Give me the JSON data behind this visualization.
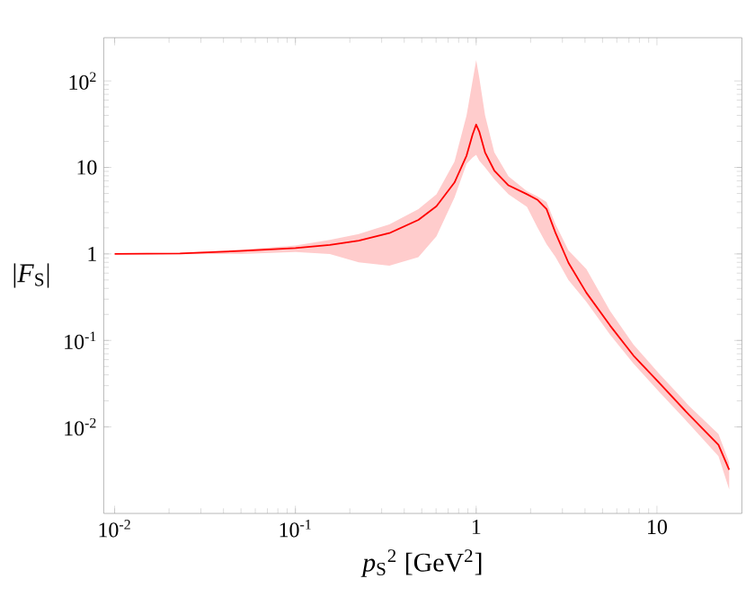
{
  "chart_data": {
    "type": "line",
    "xlabel": "*p*$_{S}$$^{2}$  [GeV$^{2}$]",
    "ylabel": "|*F*$_{S}$|",
    "log": "xy",
    "grid": false,
    "marker": "none",
    "line_style": "solid",
    "xlim": [
      0.0087,
      29.5
    ],
    "ylim": [
      0.001,
      316
    ],
    "xticks": [
      {
        "value": 0.01,
        "label": "10$^{-2}$"
      },
      {
        "value": 0.1,
        "label": "10$^{-1}$"
      },
      1,
      10
    ],
    "yticks": [
      {
        "value": 0.01,
        "label": "10$^{-2}$"
      },
      {
        "value": 0.1,
        "label": "10$^{-1}$"
      },
      1,
      10,
      {
        "value": 100,
        "label": "10$^{2}$"
      }
    ],
    "series": [
      {
        "color": "#ff0000",
        "x": [
          0.01,
          0.023,
          0.049,
          0.1,
          0.155,
          0.224,
          0.331,
          0.479,
          0.603,
          0.759,
          0.885,
          0.955,
          1.0,
          1.04,
          1.12,
          1.26,
          1.51,
          1.91,
          2.19,
          2.45,
          2.75,
          3.24,
          4.07,
          5.5,
          7.41,
          10.2,
          15.1,
          21.9,
          25.1
        ],
        "values": [
          1,
          1.01,
          1.08,
          1.17,
          1.27,
          1.42,
          1.74,
          2.47,
          3.56,
          6.7,
          13.7,
          23.9,
          31.3,
          26,
          14.9,
          9.2,
          6.2,
          4.9,
          4.2,
          3.3,
          1.74,
          0.79,
          0.356,
          0.149,
          0.067,
          0.033,
          0.0137,
          0.0062,
          0.0032
        ],
        "lower": [
          1,
          0.99,
          1.0,
          1.05,
          1.0,
          0.8,
          0.73,
          0.92,
          1.6,
          4.5,
          11,
          13,
          14,
          12,
          10,
          7.3,
          4.9,
          3.5,
          2.0,
          1.3,
          0.92,
          0.5,
          0.28,
          0.117,
          0.054,
          0.026,
          0.0108,
          0.0046,
          0.0019
        ],
        "upper": [
          1,
          1.03,
          1.12,
          1.25,
          1.45,
          1.7,
          2.2,
          3.3,
          4.9,
          11.7,
          40,
          100,
          174,
          110,
          40,
          14.9,
          7.9,
          5.3,
          4.6,
          4.0,
          2.2,
          1.1,
          0.67,
          0.22,
          0.09,
          0.042,
          0.0174,
          0.0083,
          0.0039
        ]
      }
    ]
  }
}
